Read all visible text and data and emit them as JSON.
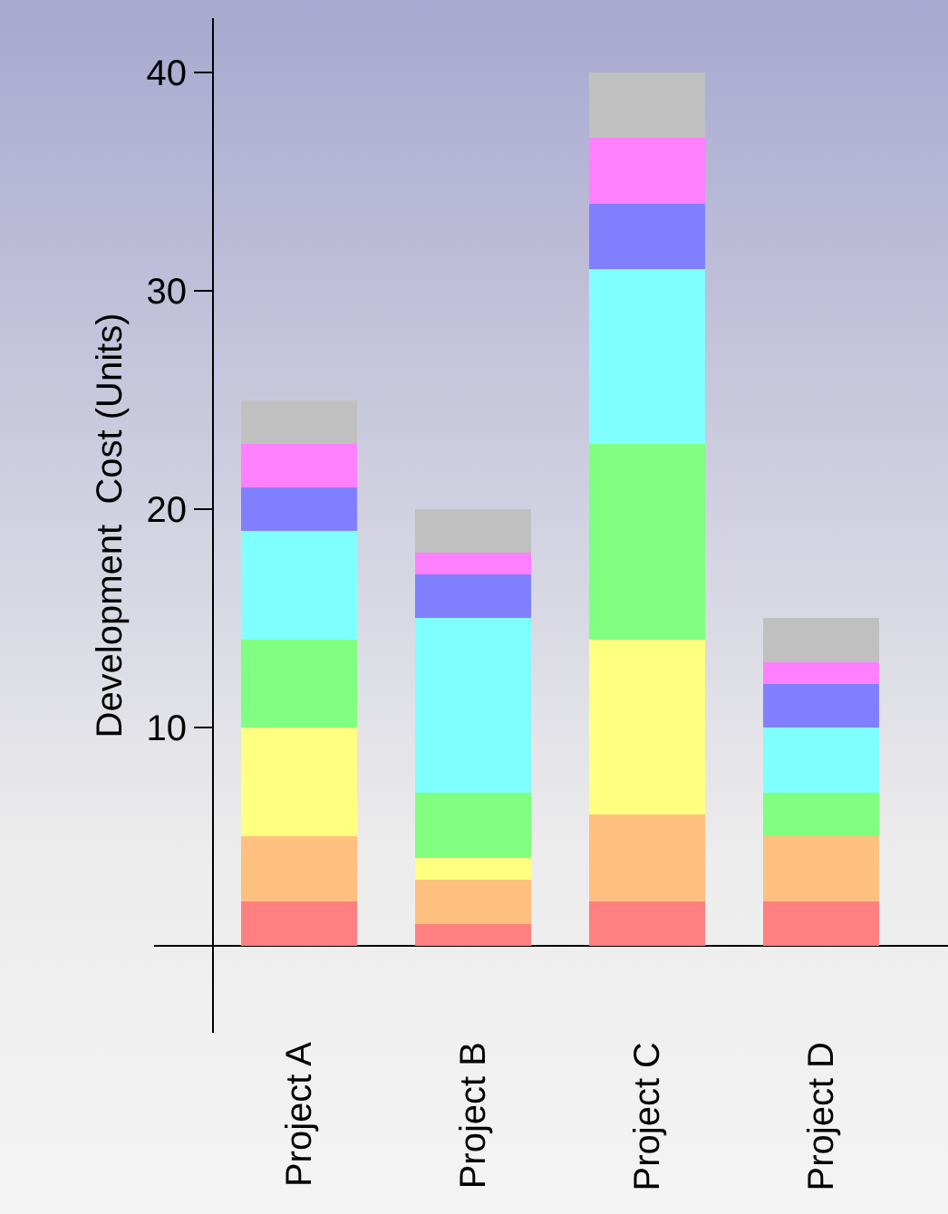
{
  "chart_data": {
    "type": "bar",
    "stacked": true,
    "ylabel": "Development  Cost (Units)",
    "categories": [
      "Project A",
      "Project B",
      "Project C",
      "Project D"
    ],
    "series": [
      {
        "color": "#ff8080",
        "values": [
          2,
          1,
          2,
          2
        ]
      },
      {
        "color": "#ffc080",
        "values": [
          3,
          2,
          4,
          3
        ]
      },
      {
        "color": "#ffff80",
        "values": [
          5,
          1,
          8,
          0
        ]
      },
      {
        "color": "#80ff80",
        "values": [
          4,
          3,
          9,
          2
        ]
      },
      {
        "color": "#80ffff",
        "values": [
          5,
          8,
          8,
          3
        ]
      },
      {
        "color": "#8080ff",
        "values": [
          2,
          2,
          3,
          2
        ]
      },
      {
        "color": "#ff80ff",
        "values": [
          2,
          1,
          3,
          1
        ]
      },
      {
        "color": "#c0c0c0",
        "values": [
          2,
          2,
          3,
          2
        ]
      }
    ],
    "ylim": [
      -4,
      42.5
    ],
    "yticks": [
      10,
      20,
      30,
      40
    ]
  }
}
